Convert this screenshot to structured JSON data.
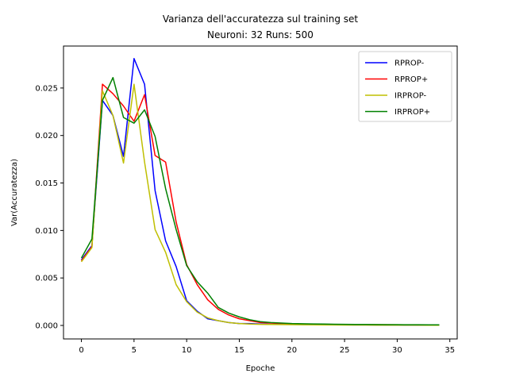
{
  "chart_data": {
    "type": "line",
    "title_lines": [
      "Varianza dell'accuratezza sul training set",
      "Neuroni: 32 Runs: 500"
    ],
    "xlabel": "Epoche",
    "ylabel": "Var(Accuratezza)",
    "xlim": [
      -1.7,
      35.7
    ],
    "ylim": [
      -0.00142,
      0.02942
    ],
    "x_ticks": [
      0,
      5,
      10,
      15,
      20,
      25,
      30,
      35
    ],
    "x_tick_labels": [
      "0",
      "5",
      "10",
      "15",
      "20",
      "25",
      "30",
      "35"
    ],
    "y_ticks": [
      0.0,
      0.005,
      0.01,
      0.015,
      0.02,
      0.025
    ],
    "y_tick_labels": [
      "0.000",
      "0.005",
      "0.010",
      "0.015",
      "0.020",
      "0.025"
    ],
    "grid": false,
    "legend_position": "top-right",
    "x": [
      0,
      1,
      2,
      3,
      4,
      5,
      6,
      7,
      8,
      9,
      10,
      11,
      12,
      13,
      14,
      15,
      16,
      17,
      18,
      19,
      20,
      21,
      22,
      23,
      24,
      25,
      26,
      27,
      28,
      29,
      30,
      31,
      32,
      33,
      34
    ],
    "series": [
      {
        "name": "RPROP-",
        "color": "#0000ff",
        "values": [
          0.0069,
          0.0084,
          0.0237,
          0.0221,
          0.0178,
          0.0281,
          0.0254,
          0.0142,
          0.0089,
          0.0062,
          0.0026,
          0.0015,
          0.0007,
          0.0005,
          0.0003,
          0.0002,
          0.0002,
          0.00015,
          0.00012,
          0.0001,
          0.0001,
          9e-05,
          8e-05,
          7e-05,
          6e-05,
          6e-05,
          5e-05,
          5e-05,
          4e-05,
          4e-05,
          4e-05,
          3e-05,
          3e-05,
          3e-05,
          3e-05
        ]
      },
      {
        "name": "RPROP+",
        "color": "#ff0000",
        "values": [
          0.0068,
          0.0083,
          0.0254,
          0.0244,
          0.0231,
          0.0215,
          0.0243,
          0.0179,
          0.0172,
          0.0109,
          0.0064,
          0.0043,
          0.0027,
          0.0017,
          0.0011,
          0.0007,
          0.0005,
          0.0003,
          0.00025,
          0.0002,
          0.00018,
          0.00015,
          0.00013,
          0.00012,
          0.0001,
          0.0001,
          9e-05,
          8e-05,
          7e-05,
          7e-05,
          6e-05,
          6e-05,
          5e-05,
          5e-05,
          5e-05
        ]
      },
      {
        "name": "IRPROP-",
        "color": "#bfbf00",
        "values": [
          0.0067,
          0.0082,
          0.0247,
          0.0221,
          0.0171,
          0.0254,
          0.0172,
          0.0101,
          0.0077,
          0.0043,
          0.0025,
          0.0014,
          0.0008,
          0.0005,
          0.0003,
          0.0002,
          0.00015,
          0.00012,
          0.0001,
          9e-05,
          8e-05,
          7e-05,
          6e-05,
          5e-05,
          5e-05,
          4e-05,
          4e-05,
          4e-05,
          3e-05,
          3e-05,
          3e-05,
          3e-05,
          3e-05,
          2e-05,
          2e-05
        ]
      },
      {
        "name": "IRPROP+",
        "color": "#008000",
        "values": [
          0.0071,
          0.0091,
          0.0237,
          0.0261,
          0.0219,
          0.0213,
          0.0227,
          0.0199,
          0.0144,
          0.0101,
          0.0063,
          0.0046,
          0.0034,
          0.0019,
          0.0013,
          0.0009,
          0.0006,
          0.0004,
          0.0003,
          0.00025,
          0.0002,
          0.00018,
          0.00016,
          0.00015,
          0.00013,
          0.00012,
          0.00011,
          0.0001,
          9e-05,
          8e-05,
          8e-05,
          7e-05,
          7e-05,
          6e-05,
          6e-05
        ]
      }
    ]
  }
}
